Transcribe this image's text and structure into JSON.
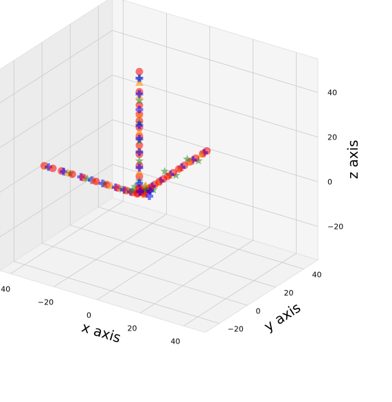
{
  "chart_data": {
    "type": "scatter",
    "projection": "3d",
    "xlabel": "x axis",
    "ylabel": "y axis",
    "zlabel": "z axis",
    "xlim": [
      -45,
      50
    ],
    "ylim": [
      -30,
      50
    ],
    "zlim": [
      -35,
      55
    ],
    "x_ticks": [
      "−40",
      "−20",
      "0",
      "20",
      "40"
    ],
    "y_ticks": [
      "−20",
      "0",
      "20",
      "40"
    ],
    "z_ticks": [
      "−20",
      "0",
      "20",
      "40"
    ],
    "grid": true,
    "legend": "none",
    "series": [
      {
        "marker": "circle",
        "color": "#ff0000",
        "points": [
          [
            -44,
            0,
            0
          ],
          [
            -40,
            0,
            0
          ],
          [
            -36,
            0,
            0
          ],
          [
            -31,
            0,
            0
          ],
          [
            -26,
            0,
            0
          ],
          [
            -20,
            0,
            0
          ],
          [
            -15,
            0,
            0
          ],
          [
            -10,
            0,
            0
          ],
          [
            -6,
            0,
            0
          ],
          [
            -3,
            0,
            0
          ],
          [
            -1,
            0,
            0
          ],
          [
            0,
            2,
            1
          ],
          [
            0,
            5,
            0
          ],
          [
            0,
            8,
            0
          ],
          [
            0,
            11,
            0
          ],
          [
            0,
            14,
            0
          ],
          [
            0,
            17,
            0
          ],
          [
            0,
            20,
            0
          ],
          [
            0,
            24,
            0
          ],
          [
            0,
            28,
            0
          ],
          [
            0,
            32,
            0
          ],
          [
            0,
            36,
            0
          ],
          [
            0,
            40,
            0
          ],
          [
            0,
            45,
            0
          ],
          [
            0,
            48,
            0
          ],
          [
            0,
            0,
            3
          ],
          [
            0,
            0,
            8
          ],
          [
            0,
            0,
            13
          ],
          [
            0,
            0,
            18
          ],
          [
            0,
            0,
            22
          ],
          [
            0,
            0,
            26
          ],
          [
            0,
            0,
            30
          ],
          [
            0,
            0,
            33
          ],
          [
            0,
            0,
            36
          ],
          [
            0,
            0,
            40
          ],
          [
            0,
            0,
            46
          ],
          [
            0,
            0,
            55
          ],
          [
            1,
            1,
            1
          ],
          [
            -1,
            1,
            2
          ],
          [
            2,
            0,
            1
          ],
          [
            0,
            -1,
            1
          ],
          [
            3,
            2,
            2
          ]
        ]
      },
      {
        "marker": "triangle",
        "color": "#ff8c00",
        "points": [
          [
            -43,
            0,
            0
          ],
          [
            -33,
            0,
            0
          ],
          [
            -21,
            0,
            0
          ],
          [
            -13,
            0,
            0
          ],
          [
            -5,
            0,
            0
          ],
          [
            0,
            6,
            0
          ],
          [
            0,
            13,
            0
          ],
          [
            0,
            21,
            0
          ],
          [
            0,
            29,
            0
          ],
          [
            0,
            36,
            0
          ],
          [
            0,
            44,
            0
          ],
          [
            0,
            0,
            10
          ],
          [
            0,
            0,
            20
          ],
          [
            0,
            0,
            28
          ],
          [
            0,
            0,
            36
          ],
          [
            0,
            0,
            44
          ],
          [
            0,
            0,
            50
          ],
          [
            2,
            1,
            0
          ],
          [
            1,
            3,
            3
          ]
        ]
      },
      {
        "marker": "star",
        "color": "#228b22",
        "points": [
          [
            -32,
            0,
            0
          ],
          [
            -24,
            0,
            0
          ],
          [
            -16,
            0,
            0
          ],
          [
            -8,
            0,
            0
          ],
          [
            -2,
            0,
            3
          ],
          [
            0,
            4,
            2
          ],
          [
            0,
            10,
            -2
          ],
          [
            0,
            18,
            3
          ],
          [
            0,
            26,
            -2
          ],
          [
            0,
            34,
            2
          ],
          [
            0,
            42,
            -2
          ],
          [
            0,
            0,
            6
          ],
          [
            0,
            0,
            15
          ],
          [
            0,
            0,
            24
          ],
          [
            0,
            0,
            32
          ],
          [
            0,
            0,
            42
          ],
          [
            0,
            0,
            52
          ],
          [
            3,
            0,
            3
          ],
          [
            -2,
            -2,
            2
          ]
        ]
      },
      {
        "marker": "plus",
        "color": "#0000ff",
        "points": [
          [
            -42,
            0,
            0
          ],
          [
            -35,
            0,
            0
          ],
          [
            -27,
            0,
            0
          ],
          [
            -22,
            0,
            0
          ],
          [
            -17,
            0,
            0
          ],
          [
            -11,
            0,
            0
          ],
          [
            -7,
            0,
            0
          ],
          [
            -4,
            0,
            0
          ],
          [
            0,
            3,
            0
          ],
          [
            0,
            9,
            0
          ],
          [
            0,
            15,
            0
          ],
          [
            0,
            22,
            0
          ],
          [
            0,
            30,
            0
          ],
          [
            0,
            38,
            0
          ],
          [
            0,
            46,
            0
          ],
          [
            0,
            0,
            5
          ],
          [
            0,
            0,
            12
          ],
          [
            0,
            0,
            19
          ],
          [
            0,
            0,
            25
          ],
          [
            0,
            0,
            31
          ],
          [
            0,
            0,
            38
          ],
          [
            0,
            0,
            45
          ],
          [
            0,
            0,
            52
          ],
          [
            2,
            2,
            1
          ],
          [
            -1,
            2,
            0
          ],
          [
            1,
            -1,
            2
          ],
          [
            4,
            1,
            0
          ],
          [
            5,
            0,
            3
          ]
        ]
      }
    ]
  }
}
